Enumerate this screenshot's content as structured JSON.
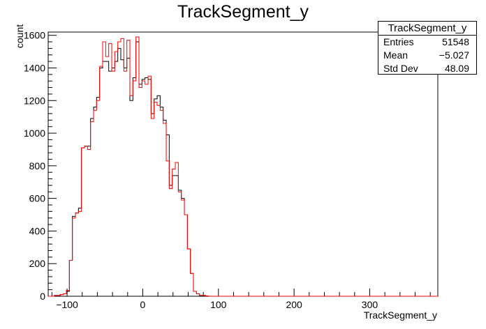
{
  "chart_data": {
    "type": "histogram",
    "title": "TrackSegment_y",
    "xlabel": "TrackSegment_y",
    "ylabel": "count",
    "xlim": [
      -125,
      390
    ],
    "ylim": [
      0,
      1620
    ],
    "bin_width": 4,
    "x_ticks": [
      -100,
      0,
      100,
      200,
      300
    ],
    "y_ticks": [
      0,
      200,
      400,
      600,
      800,
      1000,
      1200,
      1400,
      1600
    ],
    "stats": {
      "name": "TrackSegment_y",
      "entries_label": "Entries",
      "entries": "51548",
      "mean_label": "Mean",
      "mean": "−5.027",
      "std_label": "Std Dev",
      "std": "48.09"
    },
    "series": [
      {
        "color": "#000000",
        "bin_edges_start": -125,
        "values": [
          0,
          0,
          5,
          5,
          10,
          15,
          30,
          220,
          490,
          510,
          540,
          910,
          920,
          920,
          1090,
          1160,
          1220,
          1400,
          1440,
          1440,
          1380,
          1400,
          1440,
          1520,
          1450,
          1400,
          1460,
          1200,
          1340,
          1560,
          1300,
          1330,
          1340,
          1330,
          1120,
          1210,
          1230,
          1160,
          1080,
          990,
          680,
          740,
          740,
          650,
          600,
          500,
          290,
          140,
          30,
          15,
          5,
          5,
          2,
          0
        ]
      },
      {
        "color": "#ff0000",
        "bin_edges_start": -125,
        "values": [
          0,
          0,
          5,
          5,
          10,
          15,
          35,
          220,
          480,
          510,
          520,
          910,
          920,
          900,
          1070,
          1140,
          1200,
          1410,
          1560,
          1470,
          1550,
          1380,
          1500,
          1560,
          1580,
          1380,
          1570,
          1230,
          1320,
          1590,
          1280,
          1320,
          1300,
          1350,
          1090,
          1190,
          1170,
          1140,
          1060,
          830,
          660,
          780,
          820,
          640,
          590,
          500,
          290,
          140,
          30,
          15,
          5,
          5,
          2,
          0
        ]
      }
    ]
  }
}
